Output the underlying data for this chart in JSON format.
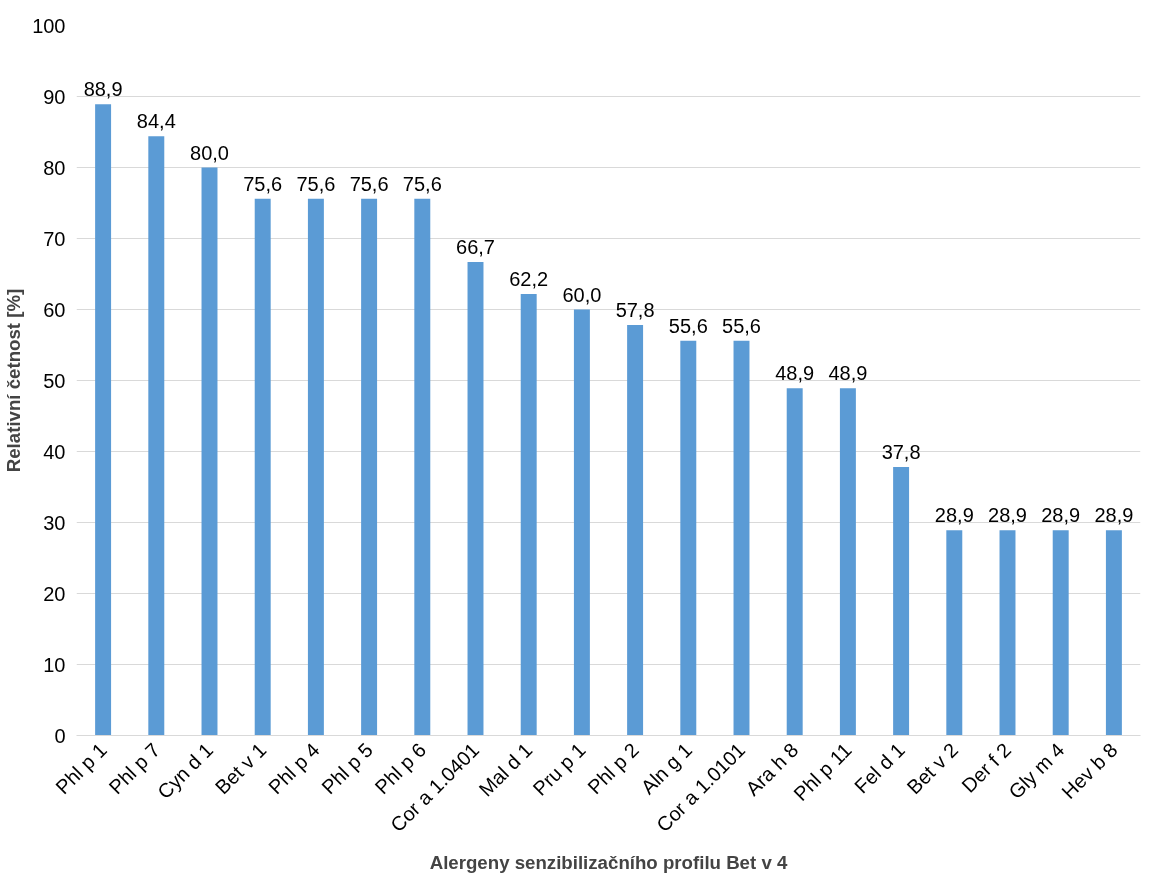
{
  "chart_data": {
    "type": "bar",
    "xlabel": "Alergeny senzibilizačního profilu Bet v 4",
    "ylabel": "Relativní četnost [%]",
    "categories": [
      "Phl p 1",
      "Phl p 7",
      "Cyn d 1",
      "Bet v 1",
      "Phl p 4",
      "Phl p 5",
      "Phl p 6",
      "Cor a 1.0401",
      "Mal d 1",
      "Pru p 1",
      "Phl p 2",
      "Aln g 1",
      "Cor a 1.0101",
      "Ara h 8",
      "Phl p 11",
      "Fel d 1",
      "Bet v 2",
      "Der f 2",
      "Gly m 4",
      "Hev b 8"
    ],
    "values": [
      88.9,
      84.4,
      80.0,
      75.6,
      75.6,
      75.6,
      75.6,
      66.7,
      62.2,
      60.0,
      57.8,
      55.6,
      55.6,
      48.9,
      48.9,
      37.8,
      28.9,
      28.9,
      28.9,
      28.9
    ],
    "value_labels": [
      "88,9",
      "84,4",
      "80,0",
      "75,6",
      "75,6",
      "75,6",
      "75,6",
      "66,7",
      "62,2",
      "60,0",
      "57,8",
      "55,6",
      "55,6",
      "48,9",
      "48,9",
      "37,8",
      "28,9",
      "28,9",
      "28,9",
      "28,9"
    ],
    "color": "#5b9bd5",
    "ylim": [
      0,
      100
    ],
    "yticks": [
      0,
      10,
      20,
      30,
      40,
      50,
      60,
      70,
      80,
      90,
      100
    ],
    "grid": "y"
  }
}
